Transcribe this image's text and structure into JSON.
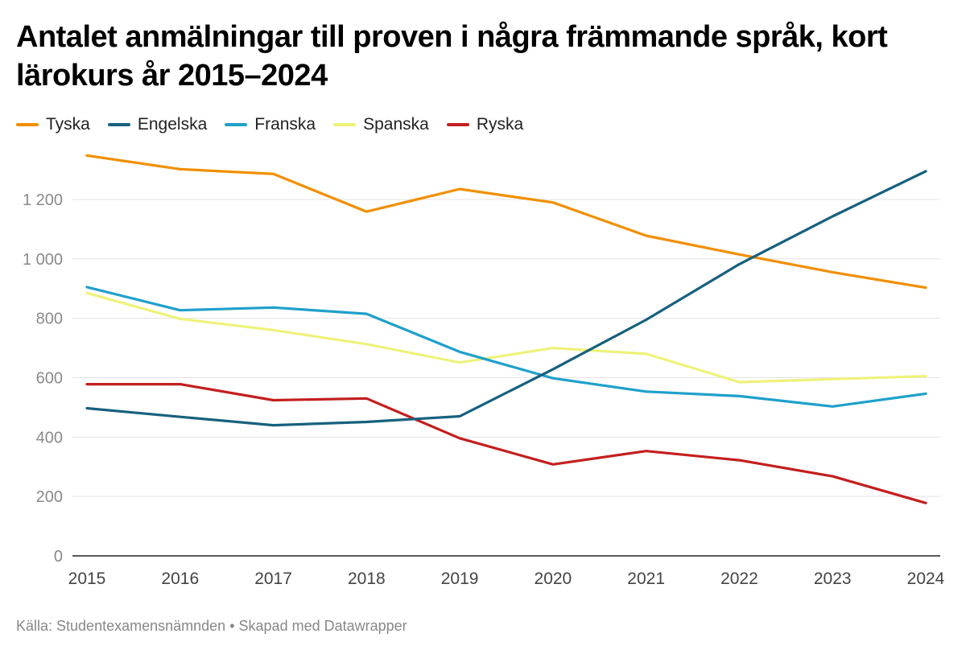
{
  "title": "Antalet anmälningar till proven i några främmande språk, kort lärokurs år 2015–2024",
  "footer": {
    "source": "Källa: Studentexamensnämnden",
    "separator": "•",
    "credit": "Skapad med Datawrapper"
  },
  "chart_data": {
    "type": "line",
    "title": "Antalet anmälningar till proven i några främmande språk, kort lärokurs år 2015–2024",
    "xlabel": "",
    "ylabel": "",
    "x": [
      "2015",
      "2016",
      "2017",
      "2018",
      "2019",
      "2020",
      "2021",
      "2022",
      "2023",
      "2024"
    ],
    "ylim": [
      0,
      1350
    ],
    "yticks": [
      0,
      200,
      400,
      600,
      800,
      1000,
      1200
    ],
    "ytick_labels": [
      "0",
      "200",
      "400",
      "600",
      "800",
      "1 000",
      "1 200"
    ],
    "grid": true,
    "legend_position": "top-left",
    "series": [
      {
        "name": "Tyska",
        "color": "#F18F00",
        "values": [
          1348,
          1302,
          1286,
          1159,
          1235,
          1190,
          1078,
          1015,
          955,
          903
        ]
      },
      {
        "name": "Engelska",
        "color": "#17607E",
        "values": [
          497,
          468,
          440,
          451,
          470,
          628,
          795,
          982,
          1143,
          1295
        ]
      },
      {
        "name": "Franska",
        "color": "#1FA0CB",
        "values": [
          905,
          827,
          836,
          815,
          687,
          598,
          553,
          538,
          503,
          546
        ]
      },
      {
        "name": "Spanska",
        "color": "#EEF27A",
        "values": [
          885,
          798,
          760,
          713,
          651,
          700,
          680,
          585,
          595,
          605
        ]
      },
      {
        "name": "Ryska",
        "color": "#C41E1E",
        "values": [
          578,
          578,
          524,
          530,
          396,
          308,
          353,
          322,
          268,
          178
        ]
      }
    ]
  }
}
